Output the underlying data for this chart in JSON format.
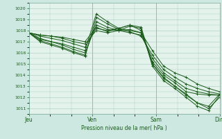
{
  "background_color": "#cce8e0",
  "plot_bg_color": "#e4f2ec",
  "grid_color": "#a8ccc4",
  "line_color": "#1a5c1a",
  "ylabel_ticks": [
    1011,
    1012,
    1013,
    1014,
    1015,
    1016,
    1017,
    1018,
    1019,
    1020
  ],
  "ylim": [
    1010.5,
    1020.5
  ],
  "xlabel": "Pression niveau de la mer( hPa )",
  "xtick_labels": [
    "Jeu",
    "Ven",
    "Sam",
    "Dim"
  ],
  "xtick_positions": [
    0,
    6,
    12,
    18
  ],
  "x_total": 18,
  "series": [
    [
      1017.8,
      1017.2,
      1017.0,
      1016.8,
      1016.5,
      1016.2,
      1019.5,
      1018.8,
      1018.2,
      1018.0,
      1017.8,
      1016.2,
      1014.8,
      1014.2,
      1013.8,
      1013.2,
      1012.8,
      1012.5
    ],
    [
      1017.8,
      1017.0,
      1016.7,
      1016.4,
      1016.0,
      1015.7,
      1019.2,
      1018.6,
      1018.1,
      1017.9,
      1017.5,
      1015.8,
      1014.5,
      1013.8,
      1013.2,
      1012.8,
      1012.5,
      1012.3
    ],
    [
      1017.8,
      1017.1,
      1016.8,
      1016.5,
      1016.1,
      1015.8,
      1018.8,
      1018.3,
      1018.0,
      1017.8,
      1017.6,
      1015.5,
      1014.2,
      1013.5,
      1012.8,
      1012.5,
      1012.3,
      1012.2
    ],
    [
      1017.8,
      1017.3,
      1017.0,
      1016.7,
      1016.3,
      1016.0,
      1018.5,
      1018.1,
      1018.0,
      1018.1,
      1017.8,
      1015.2,
      1014.0,
      1013.3,
      1012.5,
      1012.3,
      1012.2,
      1012.2
    ],
    [
      1017.8,
      1017.5,
      1017.3,
      1017.1,
      1016.8,
      1016.5,
      1018.2,
      1018.0,
      1018.2,
      1018.5,
      1018.0,
      1015.0,
      1013.8,
      1013.0,
      1012.2,
      1011.5,
      1011.0,
      1012.0
    ],
    [
      1017.8,
      1017.6,
      1017.5,
      1017.3,
      1017.0,
      1016.8,
      1018.0,
      1017.8,
      1018.0,
      1018.4,
      1018.2,
      1014.8,
      1013.5,
      1012.8,
      1012.0,
      1011.2,
      1010.8,
      1012.2
    ],
    [
      1017.8,
      1017.6,
      1017.5,
      1017.4,
      1017.2,
      1017.0,
      1018.3,
      1017.9,
      1018.2,
      1018.5,
      1018.3,
      1015.0,
      1013.7,
      1013.0,
      1012.3,
      1011.5,
      1011.2,
      1012.3
    ]
  ]
}
